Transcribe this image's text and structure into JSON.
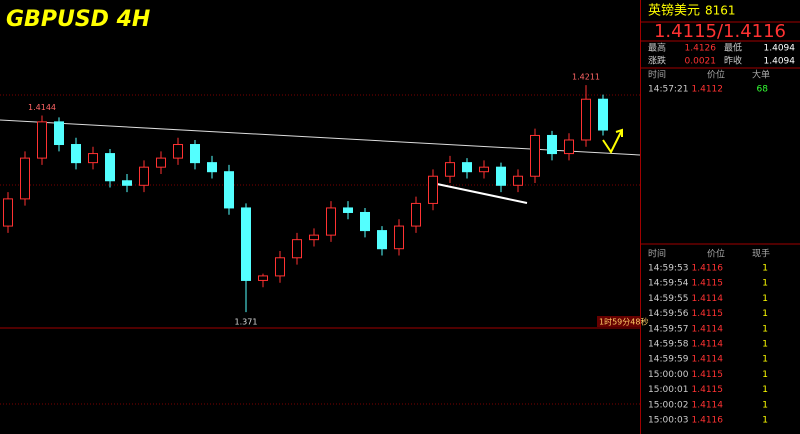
{
  "chart_data": {
    "type": "candlestick",
    "title": "GBPUSD 4H",
    "open": [
      1.39,
      1.396,
      1.405,
      1.413,
      1.408,
      1.404,
      1.406,
      1.4,
      1.399,
      1.403,
      1.405,
      1.408,
      1.404,
      1.402,
      1.394,
      1.378,
      1.379,
      1.383,
      1.387,
      1.388,
      1.394,
      1.393,
      1.389,
      1.385,
      1.39,
      1.395,
      1.401,
      1.404,
      1.402,
      1.403,
      1.399,
      1.401,
      1.41,
      1.406,
      1.409,
      1.418
    ],
    "high": [
      1.3975,
      1.4065,
      1.4144,
      1.414,
      1.4095,
      1.4075,
      1.407,
      1.4015,
      1.4045,
      1.4065,
      1.4095,
      1.409,
      1.4055,
      1.4035,
      1.395,
      1.3795,
      1.3845,
      1.3885,
      1.3895,
      1.3955,
      1.3955,
      1.394,
      1.39,
      1.3915,
      1.3965,
      1.4025,
      1.4055,
      1.405,
      1.4045,
      1.404,
      1.4025,
      1.4115,
      1.411,
      1.4105,
      1.4211,
      1.419
    ],
    "low": [
      1.3885,
      1.3945,
      1.4035,
      1.4065,
      1.4025,
      1.4025,
      1.3985,
      1.3975,
      1.3975,
      1.4015,
      1.4035,
      1.4025,
      1.4005,
      1.3925,
      1.371,
      1.3765,
      1.3775,
      1.3815,
      1.3855,
      1.3865,
      1.3915,
      1.3875,
      1.3835,
      1.3835,
      1.3885,
      1.3935,
      1.3995,
      1.4005,
      1.4005,
      1.3975,
      1.3975,
      1.3995,
      1.4045,
      1.4045,
      1.4075,
      1.41
    ],
    "close": [
      1.396,
      1.405,
      1.413,
      1.408,
      1.404,
      1.406,
      1.4,
      1.399,
      1.403,
      1.405,
      1.408,
      1.404,
      1.402,
      1.394,
      1.378,
      1.379,
      1.383,
      1.387,
      1.388,
      1.394,
      1.393,
      1.389,
      1.385,
      1.39,
      1.395,
      1.401,
      1.404,
      1.402,
      1.403,
      1.399,
      1.401,
      1.41,
      1.406,
      1.409,
      1.418,
      1.4112
    ],
    "ylim": [
      1.3675,
      1.4399
    ],
    "extreme_labels": [
      1.4144,
      1.371,
      1.4211
    ],
    "countdown": "1时59分48秒",
    "up_color": "#ff3232",
    "down_color": "#54ffff"
  },
  "quote": {
    "name": "英镑美元",
    "code": "8161",
    "price": "1.4115/1.4116",
    "fields": [
      [
        "最高",
        "1.4126",
        "最低",
        "1.4094"
      ],
      [
        "涨跌",
        "0.0021",
        "昨收",
        "1.4094"
      ]
    ],
    "big_header": [
      "时间",
      "价位",
      "大单"
    ],
    "big_rows": [
      [
        "14:57:21",
        "1.4112",
        "68"
      ]
    ],
    "tick_header": [
      "时间",
      "价位",
      "现手"
    ],
    "tick_rows": [
      [
        "14:59:53",
        "1.4116",
        "1"
      ],
      [
        "14:59:54",
        "1.4115",
        "1"
      ],
      [
        "14:59:55",
        "1.4114",
        "1"
      ],
      [
        "14:59:56",
        "1.4115",
        "1"
      ],
      [
        "14:59:57",
        "1.4114",
        "1"
      ],
      [
        "14:59:58",
        "1.4114",
        "1"
      ],
      [
        "14:59:59",
        "1.4114",
        "1"
      ],
      [
        "15:00:00",
        "1.4115",
        "1"
      ],
      [
        "15:00:01",
        "1.4115",
        "1"
      ],
      [
        "15:00:02",
        "1.4114",
        "1"
      ],
      [
        "15:00:03",
        "1.4116",
        "1"
      ]
    ]
  }
}
